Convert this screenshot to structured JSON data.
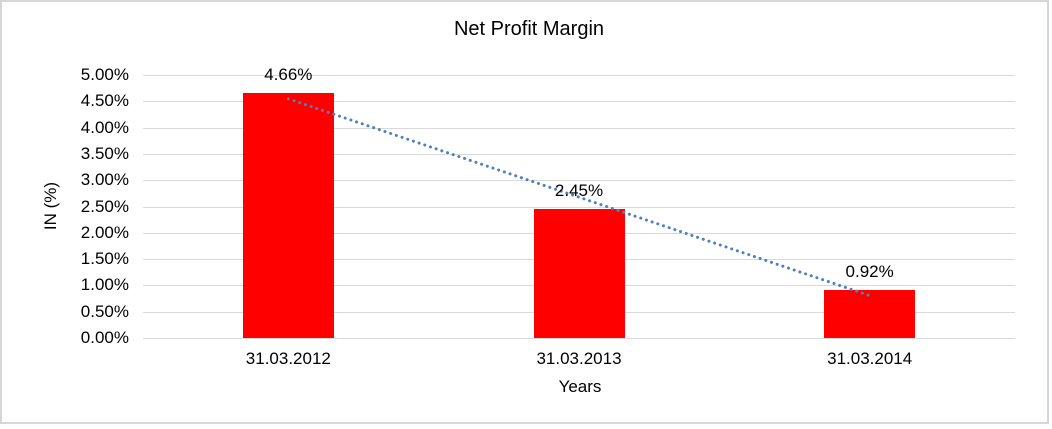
{
  "window": {
    "background": "#ffffff",
    "border_color": "#d6d6d6"
  },
  "chart_data": {
    "type": "bar",
    "title": "Net Profit Margin",
    "xlabel": "Years",
    "ylabel": "IN (%)",
    "categories": [
      "31.03.2012",
      "31.03.2013",
      "31.03.2014"
    ],
    "values": [
      4.66,
      2.45,
      0.92
    ],
    "data_labels": [
      "4.66%",
      "2.45%",
      "0.92%"
    ],
    "y_ticks": [
      "0.00%",
      "0.50%",
      "1.00%",
      "1.50%",
      "2.00%",
      "2.50%",
      "3.00%",
      "3.50%",
      "4.00%",
      "4.50%",
      "5.00%"
    ],
    "ylim": [
      0,
      5
    ],
    "ytick_step": 0.5,
    "unit": "%",
    "grid": true,
    "legend": "none",
    "bar_color": "#ff0000",
    "gridline_color": "#d9d9d9",
    "text_color": "#000000",
    "trendline": {
      "type": "linear",
      "style": "dotted",
      "color": "#4e81bd"
    }
  }
}
